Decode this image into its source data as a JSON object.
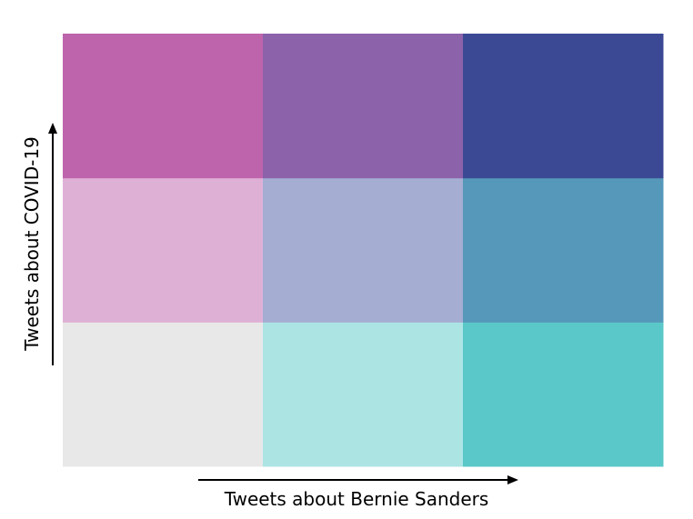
{
  "chart_data": {
    "type": "heatmap",
    "title": "",
    "xlabel": "Tweets about Bernie Sanders",
    "ylabel": "Tweets about COVID-19",
    "rows": 3,
    "cols": 3,
    "grid": false,
    "cells": [
      {
        "row": 0,
        "col": 0,
        "color": "#e8e8e8"
      },
      {
        "row": 0,
        "col": 1,
        "color": "#ace4e4"
      },
      {
        "row": 0,
        "col": 2,
        "color": "#5ac8c8"
      },
      {
        "row": 1,
        "col": 0,
        "color": "#dfb0d6"
      },
      {
        "row": 1,
        "col": 1,
        "color": "#a5add3"
      },
      {
        "row": 1,
        "col": 2,
        "color": "#5698b9"
      },
      {
        "row": 2,
        "col": 0,
        "color": "#be64ac"
      },
      {
        "row": 2,
        "col": 1,
        "color": "#8c62aa"
      },
      {
        "row": 2,
        "col": 2,
        "color": "#3b4994"
      }
    ]
  }
}
